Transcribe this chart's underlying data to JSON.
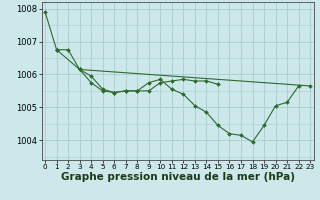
{
  "bg_color": "#cde8ea",
  "grid_color": "#a8cdd0",
  "line_color": "#2d6a2d",
  "marker_color": "#2d6a2d",
  "xlabel": "Graphe pression niveau de la mer (hPa)",
  "xlabel_fontsize": 7.5,
  "yticks": [
    1004,
    1005,
    1006,
    1007,
    1008
  ],
  "ytick_fontsize": 6.0,
  "xtick_labels": [
    "0",
    "1",
    "2",
    "3",
    "4",
    "5",
    "6",
    "7",
    "8",
    "9",
    "10",
    "11",
    "12",
    "13",
    "14",
    "15",
    "16",
    "17",
    "18",
    "19",
    "20",
    "21",
    "22",
    "23"
  ],
  "xtick_fontsize": 5.2,
  "ylim": [
    1003.4,
    1008.2
  ],
  "xlim": [
    -0.3,
    23.3
  ],
  "series": [
    [
      1007.9,
      1006.75,
      null,
      null,
      null,
      null,
      null,
      null,
      null,
      null,
      null,
      null,
      null,
      null,
      null,
      null,
      null,
      null,
      null,
      null,
      null,
      null,
      null,
      null
    ],
    [
      null,
      1006.75,
      1006.75,
      1006.15,
      1005.75,
      1005.5,
      1005.45,
      1005.5,
      1005.5,
      1005.5,
      1005.75,
      1005.8,
      1005.85,
      1005.8,
      1005.8,
      1005.7,
      null,
      null,
      null,
      null,
      null,
      null,
      null,
      null
    ],
    [
      null,
      1006.75,
      null,
      1006.15,
      1005.95,
      1005.55,
      1005.45,
      1005.5,
      1005.5,
      1005.75,
      1005.85,
      1005.55,
      1005.4,
      1005.05,
      1004.85,
      1004.45,
      1004.2,
      1004.15,
      1003.95,
      1004.45,
      1005.05,
      1005.15,
      1005.65,
      null
    ],
    [
      null,
      null,
      null,
      1006.15,
      null,
      null,
      null,
      null,
      null,
      null,
      null,
      null,
      null,
      null,
      null,
      null,
      null,
      null,
      null,
      null,
      null,
      null,
      null,
      1005.65
    ]
  ]
}
